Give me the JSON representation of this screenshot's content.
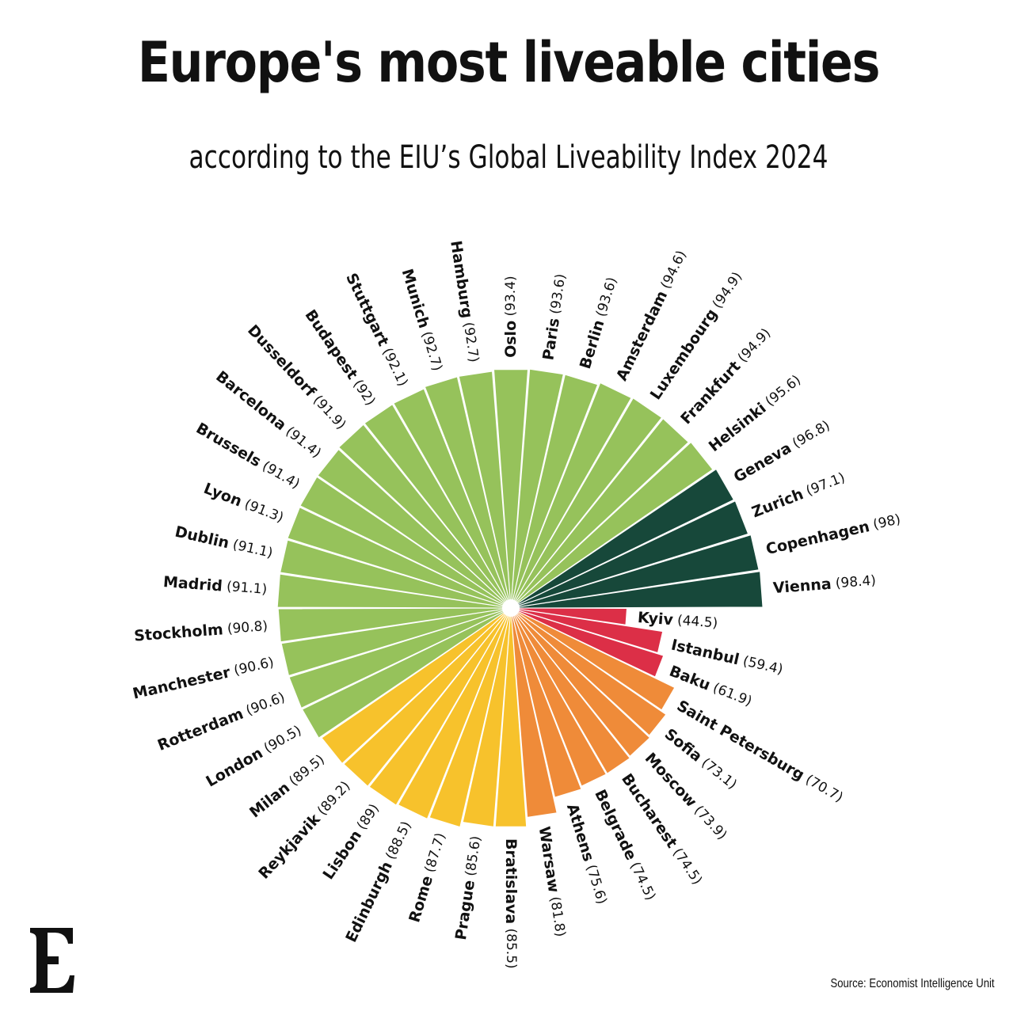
{
  "title": "Europe's most liveable cities",
  "subtitle": "according to the EIU’s Global Liveability Index 2024",
  "source": "Source: Economist Intelligence Unit",
  "chart_data": {
    "type": "bar",
    "categories": [
      "Vienna",
      "Copenhagen",
      "Zurich",
      "Geneva",
      "Helsinki",
      "Frankfurt",
      "Luxembourg",
      "Amsterdam",
      "Berlin",
      "Paris",
      "Oslo",
      "Hamburg",
      "Munich",
      "Stuttgart",
      "Budapest",
      "Dusseldorf",
      "Barcelona",
      "Brussels",
      "Lyon",
      "Dublin",
      "Madrid",
      "Stockholm",
      "Manchester",
      "Rotterdam",
      "London",
      "Milan",
      "Reykjavik",
      "Lisbon",
      "Edinburgh",
      "Rome",
      "Prague",
      "Bratislava",
      "Warsaw",
      "Athens",
      "Belgrade",
      "Bucharest",
      "Moscow",
      "Sofia",
      "Saint Petersburg",
      "Baku",
      "Istanbul",
      "Kyiv"
    ],
    "values": [
      98.4,
      98,
      97.1,
      96.8,
      95.6,
      94.9,
      94.9,
      94.6,
      93.6,
      93.6,
      93.4,
      92.7,
      92.7,
      92.1,
      92,
      91.9,
      91.4,
      91.4,
      91.3,
      91.1,
      91.1,
      90.8,
      90.6,
      90.6,
      90.5,
      89.5,
      89.2,
      89,
      88.5,
      87.7,
      85.6,
      85.5,
      81.8,
      75.6,
      74.5,
      74.5,
      73.9,
      73.1,
      70.7,
      61.9,
      59.4,
      44.5
    ],
    "colors": [
      "#17483a",
      "#17483a",
      "#17483a",
      "#17483a",
      "#96c25b",
      "#96c25b",
      "#96c25b",
      "#96c25b",
      "#96c25b",
      "#96c25b",
      "#96c25b",
      "#96c25b",
      "#96c25b",
      "#96c25b",
      "#96c25b",
      "#96c25b",
      "#96c25b",
      "#96c25b",
      "#96c25b",
      "#96c25b",
      "#96c25b",
      "#96c25b",
      "#96c25b",
      "#96c25b",
      "#96c25b",
      "#f7c22c",
      "#f7c22c",
      "#f7c22c",
      "#f7c22c",
      "#f7c22c",
      "#f7c22c",
      "#f7c22c",
      "#ef8b39",
      "#ef8b39",
      "#ef8b39",
      "#ef8b39",
      "#ef8b39",
      "#ef8b39",
      "#ef8b39",
      "#dc2f47",
      "#dc2f47",
      "#dc2f47"
    ],
    "layout": "radial"
  },
  "logo_letter": "E"
}
